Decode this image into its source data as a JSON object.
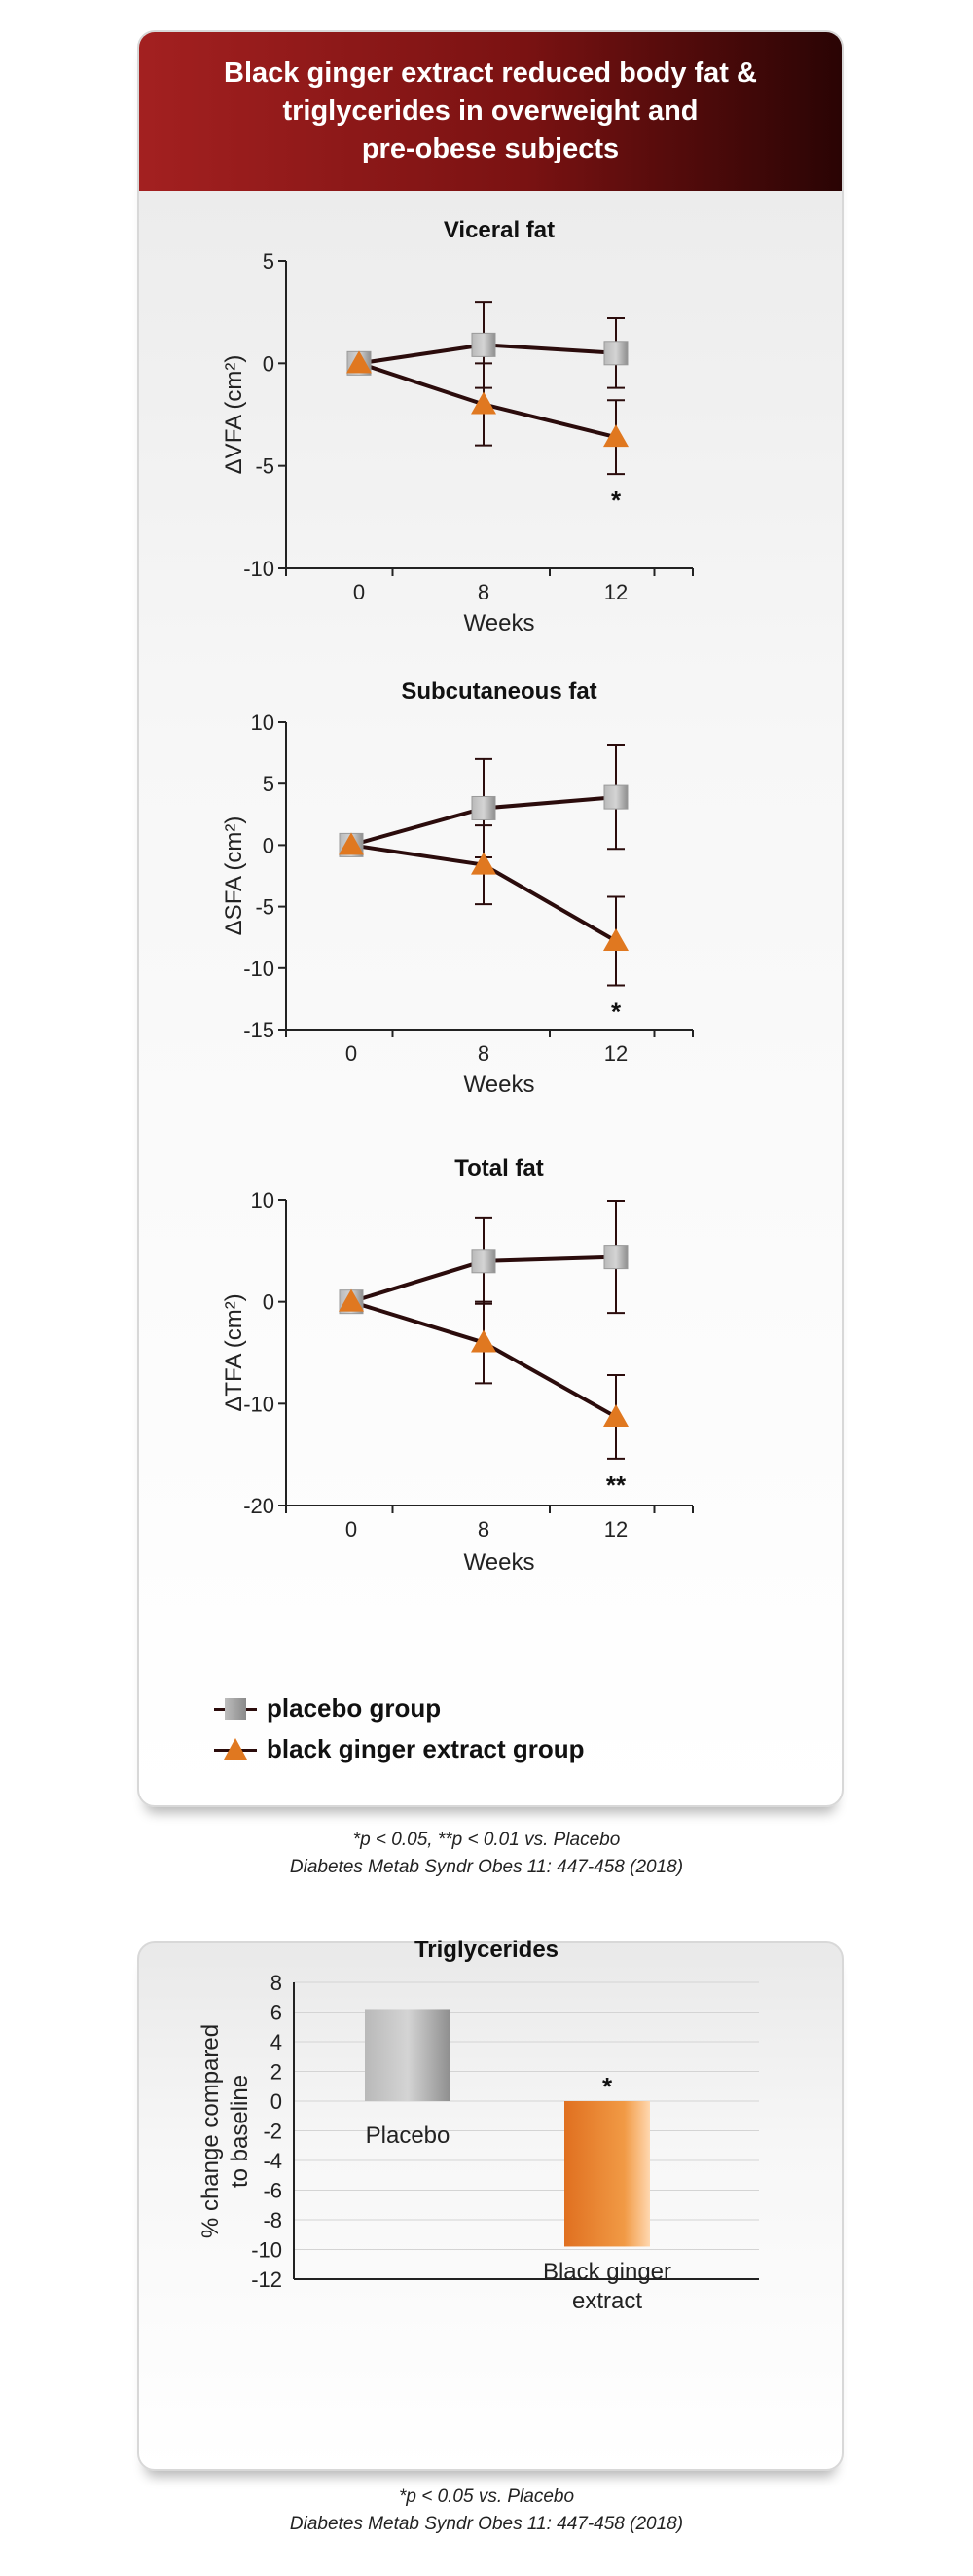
{
  "banner": {
    "title": "Black ginger extract reduced body fat &\ntriglycerides in overweight and\npre-obese subjects"
  },
  "legend": {
    "placebo": "placebo group",
    "extract": "black ginger extract group"
  },
  "caption1": {
    "line1": "*p < 0.05, **p < 0.01 vs. Placebo",
    "line2": "Diabetes Metab Syndr Obes 11: 447-458 (2018)"
  },
  "caption2": {
    "line1": "*p < 0.05 vs. Placebo",
    "line2": "Diabetes Metab Syndr Obes 11: 447-458 (2018)"
  },
  "colors": {
    "banner_start": "#a32020",
    "banner_end": "#2a0404",
    "placebo": "#a0a0a0",
    "extract": "#e07820",
    "line": "#2b0c0c"
  },
  "chart_data": [
    {
      "type": "line",
      "title": "Viceral fat",
      "xlabel": "Weeks",
      "ylabel": "ΔVFA (cm²)",
      "x": [
        0,
        8,
        12
      ],
      "ylim": [
        -10,
        5
      ],
      "yticks": [
        5,
        0,
        -5,
        -10
      ],
      "series": [
        {
          "name": "placebo group",
          "values": [
            0,
            0.9,
            0.5
          ],
          "err": [
            0,
            2.1,
            1.7
          ]
        },
        {
          "name": "black ginger extract group",
          "values": [
            0,
            -2,
            -3.6
          ],
          "err": [
            0,
            2,
            1.8
          ]
        }
      ],
      "annotations": [
        {
          "x": 12,
          "text": "*"
        }
      ]
    },
    {
      "type": "line",
      "title": "Subcutaneous fat",
      "xlabel": "Weeks",
      "ylabel": "ΔSFA (cm²)",
      "x": [
        0,
        8,
        12
      ],
      "ylim": [
        -15,
        10
      ],
      "yticks": [
        10,
        5,
        0,
        -5,
        -10,
        -15
      ],
      "series": [
        {
          "name": "placebo group",
          "values": [
            0,
            3,
            3.9
          ],
          "err": [
            0,
            4,
            4.2
          ]
        },
        {
          "name": "black ginger extract group",
          "values": [
            0,
            -1.6,
            -7.8
          ],
          "err": [
            0,
            3.2,
            3.6
          ]
        }
      ],
      "annotations": [
        {
          "x": 12,
          "text": "*"
        }
      ]
    },
    {
      "type": "line",
      "title": "Total fat",
      "xlabel": "Weeks",
      "ylabel": "ΔTFA (cm²)",
      "x": [
        0,
        8,
        12
      ],
      "ylim": [
        -20,
        10
      ],
      "yticks": [
        10,
        0,
        -10,
        -20
      ],
      "series": [
        {
          "name": "placebo group",
          "values": [
            0,
            4,
            4.4
          ],
          "err": [
            0,
            4.2,
            5.5
          ]
        },
        {
          "name": "black ginger extract group",
          "values": [
            0,
            -4,
            -11.3
          ],
          "err": [
            0,
            4,
            4.1
          ]
        }
      ],
      "annotations": [
        {
          "x": 12,
          "text": "**"
        }
      ]
    },
    {
      "type": "bar",
      "title": "Triglycerides",
      "ylabel": "% change compared to baseline",
      "categories": [
        "Placebo",
        "Black ginger extract"
      ],
      "values": [
        6.2,
        -9.8
      ],
      "ylim": [
        -12,
        8
      ],
      "yticks": [
        8,
        6,
        4,
        2,
        0,
        -2,
        -4,
        -6,
        -8,
        -10,
        -12
      ],
      "grid": true,
      "annotations": [
        {
          "category": "Black ginger extract",
          "text": "*"
        }
      ]
    }
  ]
}
